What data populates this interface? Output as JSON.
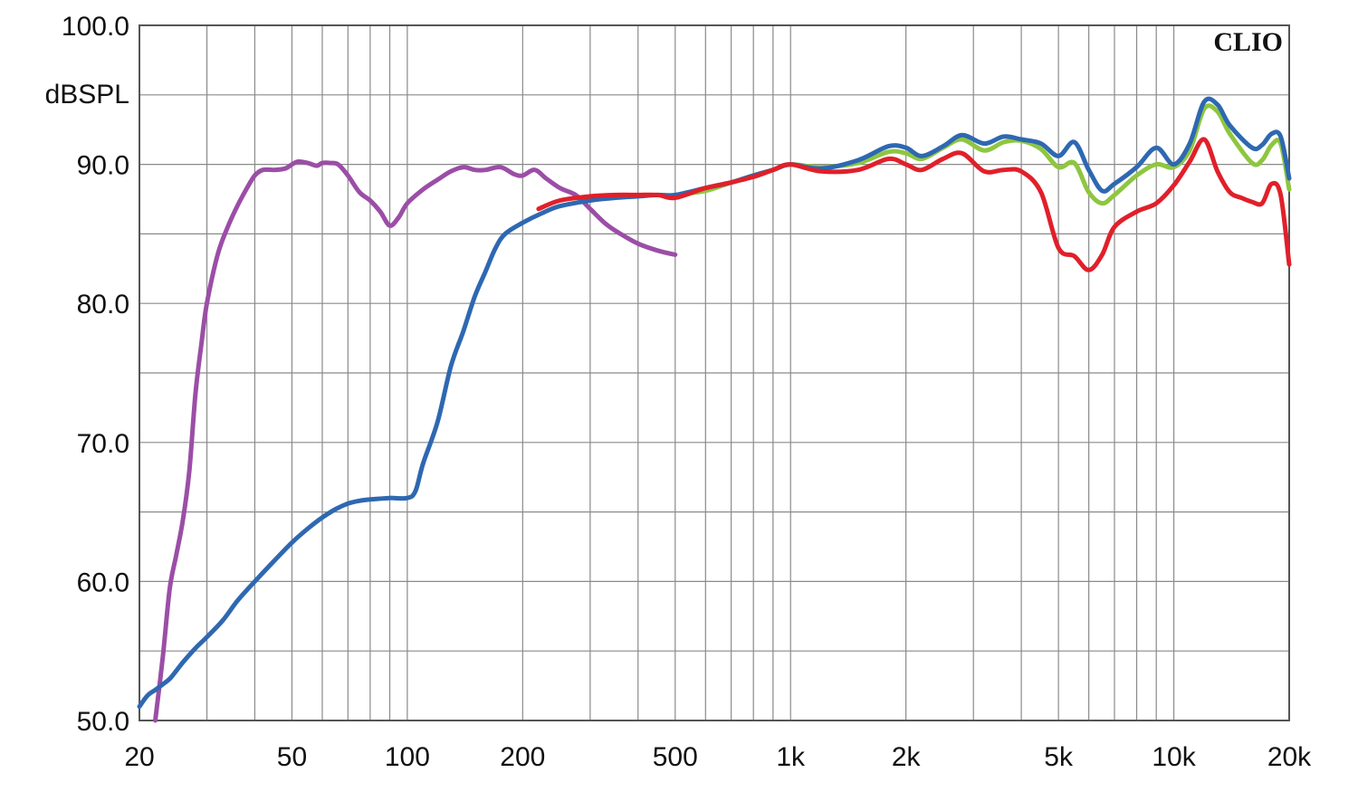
{
  "chart_data": {
    "type": "line",
    "title": "",
    "brand": "CLIO",
    "ylabel": "dBSPL",
    "xlabel": "",
    "x_scale": "log",
    "xlim": [
      20,
      20000
    ],
    "ylim": [
      50,
      100
    ],
    "grid": true,
    "x_ticks": [
      {
        "value": 20,
        "label": "20"
      },
      {
        "value": 50,
        "label": "50"
      },
      {
        "value": 100,
        "label": "100"
      },
      {
        "value": 200,
        "label": "200"
      },
      {
        "value": 500,
        "label": "500"
      },
      {
        "value": 1000,
        "label": "1k"
      },
      {
        "value": 2000,
        "label": "2k"
      },
      {
        "value": 5000,
        "label": "5k"
      },
      {
        "value": 10000,
        "label": "10k"
      },
      {
        "value": 20000,
        "label": "20k"
      }
    ],
    "y_ticks": [
      {
        "value": 100,
        "label": "100.0"
      },
      {
        "value": 90,
        "label": "90.0"
      },
      {
        "value": 80,
        "label": "80.0"
      },
      {
        "value": 70,
        "label": "70.0"
      },
      {
        "value": 60,
        "label": "60.0"
      },
      {
        "value": 50,
        "label": "50.0"
      }
    ],
    "series": [
      {
        "color": "#8ec63f",
        "points": [
          [
            500,
            87.8
          ],
          [
            600,
            88.1
          ],
          [
            700,
            88.7
          ],
          [
            800,
            89.2
          ],
          [
            900,
            89.6
          ],
          [
            1000,
            90.0
          ],
          [
            1200,
            89.8
          ],
          [
            1500,
            90.1
          ],
          [
            1800,
            90.9
          ],
          [
            2000,
            90.8
          ],
          [
            2200,
            90.4
          ],
          [
            2500,
            91.2
          ],
          [
            2800,
            91.8
          ],
          [
            3200,
            91.0
          ],
          [
            3600,
            91.6
          ],
          [
            4000,
            91.7
          ],
          [
            4500,
            91.1
          ],
          [
            5000,
            89.8
          ],
          [
            5500,
            90.1
          ],
          [
            6000,
            88.0
          ],
          [
            6500,
            87.2
          ],
          [
            7000,
            87.8
          ],
          [
            8000,
            89.2
          ],
          [
            9000,
            90.0
          ],
          [
            10000,
            89.8
          ],
          [
            11000,
            91.0
          ],
          [
            12000,
            94.0
          ],
          [
            13000,
            93.8
          ],
          [
            14000,
            92.2
          ],
          [
            16000,
            90.1
          ],
          [
            17000,
            90.3
          ],
          [
            18000,
            91.4
          ],
          [
            19000,
            91.5
          ],
          [
            20000,
            88.2
          ]
        ]
      },
      {
        "color": "#9b4ea6",
        "points": [
          [
            22,
            50.0
          ],
          [
            23,
            54.5
          ],
          [
            24,
            59.5
          ],
          [
            25,
            62.0
          ],
          [
            26,
            64.5
          ],
          [
            27,
            68.0
          ],
          [
            28,
            73.5
          ],
          [
            29,
            77.0
          ],
          [
            30,
            80.0
          ],
          [
            32,
            83.5
          ],
          [
            34,
            85.5
          ],
          [
            36,
            87.0
          ],
          [
            38,
            88.2
          ],
          [
            40,
            89.2
          ],
          [
            42,
            89.6
          ],
          [
            45,
            89.6
          ],
          [
            48,
            89.7
          ],
          [
            50,
            90.0
          ],
          [
            52,
            90.2
          ],
          [
            55,
            90.1
          ],
          [
            58,
            89.9
          ],
          [
            60,
            90.1
          ],
          [
            63,
            90.1
          ],
          [
            66,
            90.0
          ],
          [
            70,
            89.2
          ],
          [
            75,
            88.0
          ],
          [
            80,
            87.4
          ],
          [
            85,
            86.6
          ],
          [
            90,
            85.6
          ],
          [
            95,
            86.2
          ],
          [
            100,
            87.2
          ],
          [
            110,
            88.2
          ],
          [
            120,
            88.9
          ],
          [
            130,
            89.5
          ],
          [
            140,
            89.8
          ],
          [
            150,
            89.6
          ],
          [
            160,
            89.6
          ],
          [
            175,
            89.8
          ],
          [
            190,
            89.3
          ],
          [
            200,
            89.2
          ],
          [
            215,
            89.6
          ],
          [
            230,
            89.0
          ],
          [
            250,
            88.3
          ],
          [
            275,
            87.8
          ],
          [
            300,
            86.8
          ],
          [
            330,
            85.7
          ],
          [
            360,
            85.0
          ],
          [
            400,
            84.3
          ],
          [
            450,
            83.8
          ],
          [
            500,
            83.5
          ]
        ]
      },
      {
        "color": "#2e68b1",
        "points": [
          [
            20,
            51.0
          ],
          [
            21,
            51.8
          ],
          [
            22,
            52.2
          ],
          [
            23,
            52.6
          ],
          [
            24,
            53.0
          ],
          [
            25,
            53.6
          ],
          [
            26,
            54.2
          ],
          [
            28,
            55.2
          ],
          [
            30,
            56.0
          ],
          [
            33,
            57.2
          ],
          [
            36,
            58.6
          ],
          [
            40,
            60.0
          ],
          [
            45,
            61.5
          ],
          [
            50,
            62.8
          ],
          [
            55,
            63.8
          ],
          [
            60,
            64.6
          ],
          [
            65,
            65.2
          ],
          [
            70,
            65.6
          ],
          [
            75,
            65.8
          ],
          [
            80,
            65.9
          ],
          [
            90,
            66.0
          ],
          [
            100,
            66.0
          ],
          [
            105,
            66.5
          ],
          [
            110,
            68.5
          ],
          [
            120,
            71.5
          ],
          [
            130,
            75.5
          ],
          [
            140,
            78.0
          ],
          [
            150,
            80.5
          ],
          [
            160,
            82.3
          ],
          [
            170,
            84.0
          ],
          [
            180,
            85.0
          ],
          [
            200,
            85.8
          ],
          [
            225,
            86.5
          ],
          [
            250,
            87.0
          ],
          [
            300,
            87.4
          ],
          [
            350,
            87.6
          ],
          [
            400,
            87.7
          ],
          [
            450,
            87.8
          ],
          [
            500,
            87.8
          ],
          [
            600,
            88.3
          ],
          [
            700,
            88.7
          ],
          [
            800,
            89.2
          ],
          [
            900,
            89.6
          ],
          [
            1000,
            90.0
          ],
          [
            1200,
            89.7
          ],
          [
            1500,
            90.3
          ],
          [
            1800,
            91.3
          ],
          [
            2000,
            91.2
          ],
          [
            2200,
            90.6
          ],
          [
            2500,
            91.3
          ],
          [
            2800,
            92.1
          ],
          [
            3200,
            91.5
          ],
          [
            3600,
            92.0
          ],
          [
            4000,
            91.8
          ],
          [
            4500,
            91.5
          ],
          [
            5000,
            90.6
          ],
          [
            5500,
            91.6
          ],
          [
            6000,
            89.6
          ],
          [
            6500,
            88.1
          ],
          [
            7000,
            88.6
          ],
          [
            8000,
            89.8
          ],
          [
            9000,
            91.2
          ],
          [
            10000,
            90.0
          ],
          [
            11000,
            91.5
          ],
          [
            12000,
            94.5
          ],
          [
            13000,
            94.3
          ],
          [
            14000,
            92.8
          ],
          [
            16000,
            91.2
          ],
          [
            17000,
            91.4
          ],
          [
            18000,
            92.2
          ],
          [
            19000,
            92.0
          ],
          [
            20000,
            89.0
          ]
        ]
      },
      {
        "color": "#e0202a",
        "points": [
          [
            220,
            86.8
          ],
          [
            250,
            87.4
          ],
          [
            300,
            87.7
          ],
          [
            350,
            87.8
          ],
          [
            400,
            87.8
          ],
          [
            450,
            87.8
          ],
          [
            500,
            87.6
          ],
          [
            600,
            88.3
          ],
          [
            700,
            88.7
          ],
          [
            800,
            89.1
          ],
          [
            900,
            89.6
          ],
          [
            1000,
            90.0
          ],
          [
            1200,
            89.5
          ],
          [
            1500,
            89.6
          ],
          [
            1800,
            90.4
          ],
          [
            2000,
            90.0
          ],
          [
            2200,
            89.6
          ],
          [
            2500,
            90.4
          ],
          [
            2800,
            90.8
          ],
          [
            3200,
            89.5
          ],
          [
            3600,
            89.6
          ],
          [
            4000,
            89.5
          ],
          [
            4500,
            88.0
          ],
          [
            5000,
            84.0
          ],
          [
            5500,
            83.4
          ],
          [
            6000,
            82.4
          ],
          [
            6500,
            83.5
          ],
          [
            7000,
            85.5
          ],
          [
            8000,
            86.6
          ],
          [
            9000,
            87.2
          ],
          [
            10000,
            88.5
          ],
          [
            11000,
            90.2
          ],
          [
            12000,
            91.8
          ],
          [
            13000,
            89.5
          ],
          [
            14000,
            88.0
          ],
          [
            15000,
            87.6
          ],
          [
            16000,
            87.3
          ],
          [
            17000,
            87.2
          ],
          [
            18000,
            88.6
          ],
          [
            19000,
            87.8
          ],
          [
            20000,
            82.8
          ]
        ]
      }
    ]
  }
}
